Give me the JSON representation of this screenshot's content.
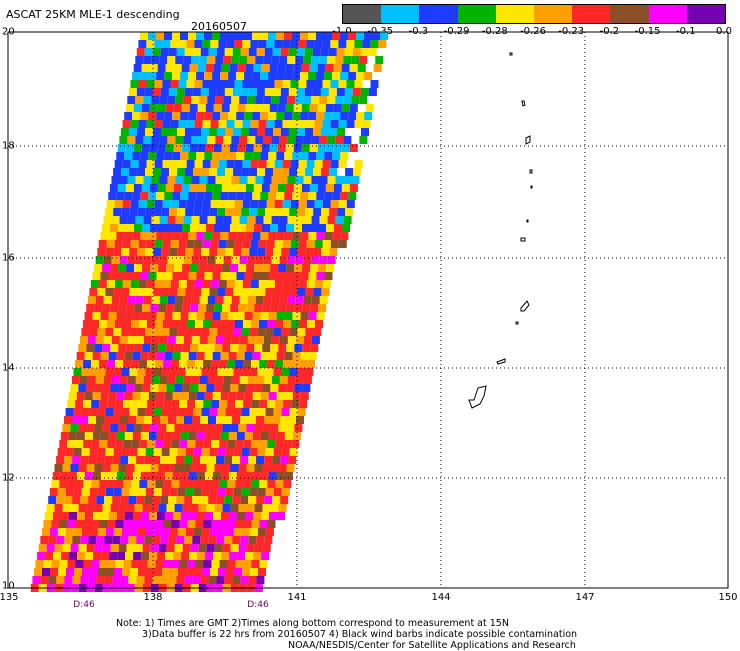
{
  "title": "ASCAT 25KM MLE-1 descending",
  "date": "20160507",
  "legend": {
    "colors": [
      "#555555",
      "#00bfff",
      "#1e3cff",
      "#00b400",
      "#ffe600",
      "#ffa000",
      "#ff2828",
      "#8c5028",
      "#ff00ff",
      "#7800b4"
    ],
    "labels": [
      "-1.0",
      "-0.35",
      "-0.3",
      "-0.29",
      "-0.28",
      "-0.26",
      "-0.23",
      "-0.2",
      "-0.15",
      "-0.1",
      "0.0"
    ]
  },
  "axes": {
    "lat_ticks": [
      "20",
      "18",
      "16",
      "14",
      "12",
      "10"
    ],
    "lon_ticks": [
      "135",
      "138",
      "141",
      "144",
      "147",
      "150"
    ],
    "lon_range": [
      135,
      150
    ],
    "lat_range": [
      10,
      20
    ]
  },
  "swath_times": [
    "D:46",
    "D:46"
  ],
  "notes": [
    "Note: 1) Times are GMT 2)Times along bottom correspond to measurement at 15N",
    "3)Data buffer is 22 hrs from 20160507 4) Black wind barbs indicate possible contamination",
    "NOAA/NESDIS/Center for Satellite Applications and Research"
  ]
}
